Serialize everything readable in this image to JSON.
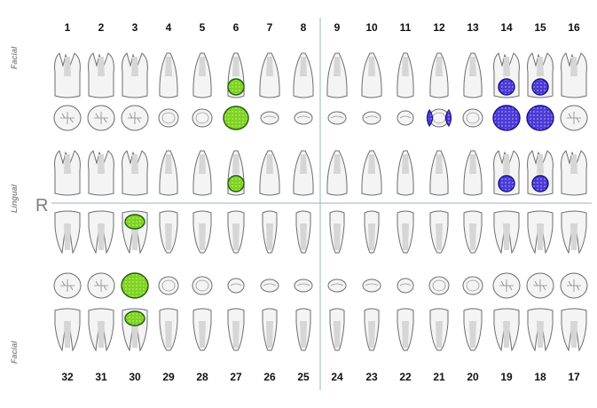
{
  "chart": {
    "side_labels": {
      "facial_top": "Facial",
      "lingual": "Lingual",
      "facial_bottom": "Facial"
    },
    "right_marker": "R",
    "upper_numbers": [
      "1",
      "2",
      "3",
      "4",
      "5",
      "6",
      "7",
      "8",
      "9",
      "10",
      "11",
      "12",
      "13",
      "14",
      "15",
      "16"
    ],
    "lower_numbers": [
      "32",
      "31",
      "30",
      "29",
      "28",
      "27",
      "26",
      "25",
      "24",
      "23",
      "22",
      "21",
      "20",
      "19",
      "18",
      "17"
    ],
    "colors": {
      "tooth_fill": "#f4f4f4",
      "tooth_outline": "#6d6d6d",
      "root_fill": "#d6d6d6",
      "green_fill": "#7ed321",
      "green_outline": "#1f5a0f",
      "blue_fill": "#4b3ad6",
      "blue_outline": "#1a1388",
      "divider": "#9ab4bf"
    },
    "marked_teeth": [
      {
        "tooth": "6",
        "color": "green",
        "surfaces": [
          "facial-crown",
          "occlusal",
          "lingual-crown"
        ]
      },
      {
        "tooth": "12",
        "color": "blue",
        "surfaces": [
          "mesial",
          "distal"
        ]
      },
      {
        "tooth": "14",
        "color": "blue",
        "surfaces": [
          "facial-crown",
          "occlusal",
          "lingual-crown"
        ]
      },
      {
        "tooth": "15",
        "color": "blue",
        "surfaces": [
          "facial-crown",
          "occlusal",
          "lingual-crown"
        ]
      },
      {
        "tooth": "30",
        "color": "green",
        "surfaces": [
          "facial-crown",
          "occlusal",
          "lingual-crown"
        ]
      }
    ]
  }
}
